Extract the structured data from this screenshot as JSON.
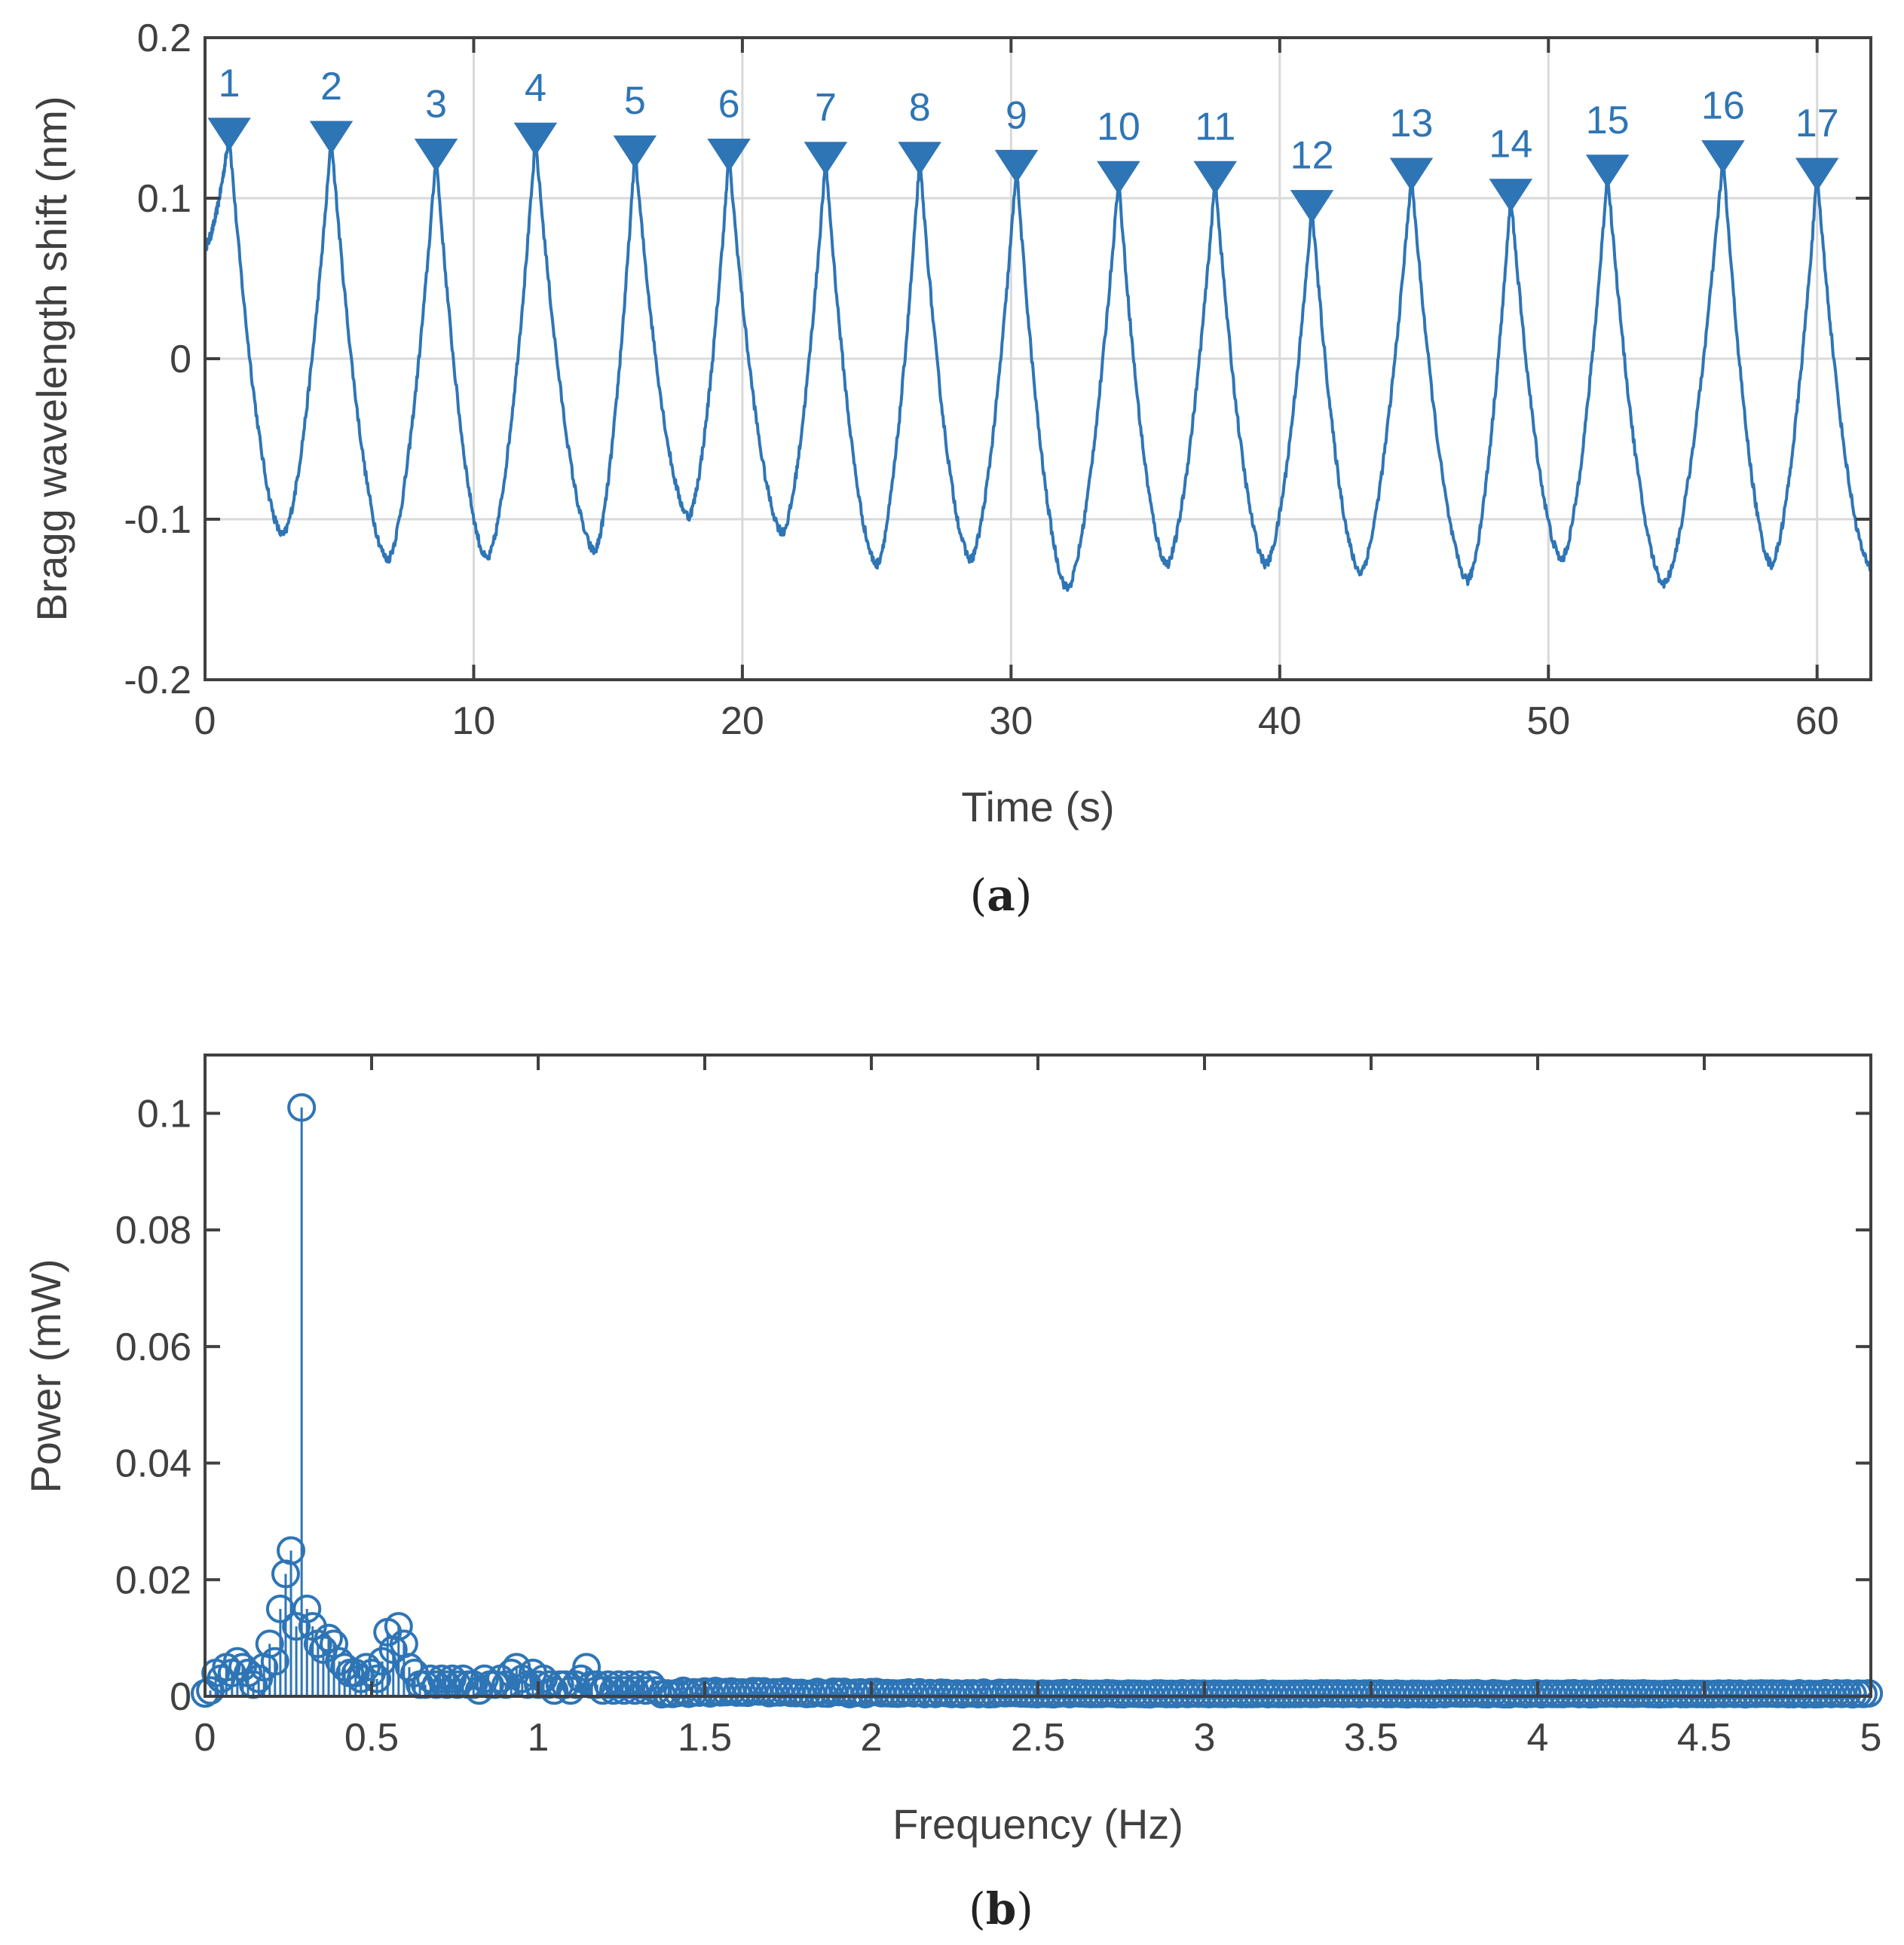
{
  "colors": {
    "series": "#2e75b6",
    "axis": "#404040",
    "grid": "#d9d9d9"
  },
  "chart_data": [
    {
      "id": "a",
      "type": "line",
      "caption_open": "(",
      "caption_letter": "a",
      "caption_close": ")",
      "xlabel": "Time (s)",
      "ylabel": "Bragg wavelength shift (nm)",
      "xlim": [
        0,
        62
      ],
      "ylim": [
        -0.2,
        0.2
      ],
      "xticks": [
        0,
        10,
        20,
        30,
        40,
        50,
        60
      ],
      "yticks": [
        -0.2,
        -0.1,
        0,
        0.1,
        0.2
      ],
      "xtick_labels": [
        "0",
        "10",
        "20",
        "30",
        "40",
        "50",
        "60"
      ],
      "ytick_labels": [
        "-0.2",
        "-0.1",
        "0",
        "0.1",
        "0.2"
      ],
      "grid": true,
      "series_start": [
        0,
        0.07
      ],
      "series_end": [
        62,
        -0.13
      ],
      "troughs": [
        [
          2.9,
          -0.11
        ],
        [
          6.8,
          -0.125
        ],
        [
          10.5,
          -0.125
        ],
        [
          14.5,
          -0.12
        ],
        [
          18.0,
          -0.098
        ],
        [
          21.5,
          -0.108
        ],
        [
          25.0,
          -0.128
        ],
        [
          28.5,
          -0.125
        ],
        [
          32.1,
          -0.143
        ],
        [
          35.8,
          -0.128
        ],
        [
          39.5,
          -0.128
        ],
        [
          43.0,
          -0.133
        ],
        [
          47.0,
          -0.138
        ],
        [
          50.5,
          -0.125
        ],
        [
          54.3,
          -0.14
        ],
        [
          58.3,
          -0.128
        ]
      ],
      "peaks": [
        {
          "label": "1",
          "t": 0.9,
          "v": 0.14
        },
        {
          "label": "2",
          "t": 4.7,
          "v": 0.138
        },
        {
          "label": "3",
          "t": 8.6,
          "v": 0.127
        },
        {
          "label": "4",
          "t": 12.3,
          "v": 0.137
        },
        {
          "label": "5",
          "t": 16.0,
          "v": 0.129
        },
        {
          "label": "6",
          "t": 19.5,
          "v": 0.127
        },
        {
          "label": "7",
          "t": 23.1,
          "v": 0.125
        },
        {
          "label": "8",
          "t": 26.6,
          "v": 0.125
        },
        {
          "label": "9",
          "t": 30.2,
          "v": 0.12
        },
        {
          "label": "10",
          "t": 34.0,
          "v": 0.113
        },
        {
          "label": "11",
          "t": 37.6,
          "v": 0.113
        },
        {
          "label": "12",
          "t": 41.2,
          "v": 0.095
        },
        {
          "label": "13",
          "t": 44.9,
          "v": 0.115
        },
        {
          "label": "14",
          "t": 48.6,
          "v": 0.102
        },
        {
          "label": "15",
          "t": 52.2,
          "v": 0.117
        },
        {
          "label": "16",
          "t": 56.5,
          "v": 0.126
        },
        {
          "label": "17",
          "t": 60.0,
          "v": 0.115
        }
      ]
    },
    {
      "id": "b",
      "type": "stem",
      "caption_open": "(",
      "caption_letter": "b",
      "caption_close": ")",
      "xlabel": "Frequency (Hz)",
      "ylabel": "Power (mW)",
      "xlim": [
        0,
        5
      ],
      "ylim": [
        0,
        0.11
      ],
      "xticks": [
        0,
        0.5,
        1,
        1.5,
        2,
        2.5,
        3,
        3.5,
        4,
        4.5,
        5
      ],
      "yticks": [
        0,
        0.02,
        0.04,
        0.06,
        0.08,
        0.1
      ],
      "xtick_labels": [
        "0",
        "0.5",
        "1",
        "1.5",
        "2",
        "2.5",
        "3",
        "3.5",
        "4",
        "4.5",
        "5"
      ],
      "ytick_labels": [
        "0",
        "0.02",
        "0.04",
        "0.06",
        "0.08",
        "0.1"
      ],
      "grid": false,
      "freq_step": 0.0161,
      "points": [
        [
          0.0,
          0.0005
        ],
        [
          0.016,
          0.001
        ],
        [
          0.032,
          0.004
        ],
        [
          0.048,
          0.003
        ],
        [
          0.064,
          0.005
        ],
        [
          0.081,
          0.004
        ],
        [
          0.097,
          0.006
        ],
        [
          0.113,
          0.005
        ],
        [
          0.129,
          0.004
        ],
        [
          0.145,
          0.002
        ],
        [
          0.161,
          0.003
        ],
        [
          0.177,
          0.005
        ],
        [
          0.194,
          0.009
        ],
        [
          0.21,
          0.006
        ],
        [
          0.226,
          0.015
        ],
        [
          0.242,
          0.021
        ],
        [
          0.258,
          0.025
        ],
        [
          0.274,
          0.012
        ],
        [
          0.29,
          0.101
        ],
        [
          0.306,
          0.015
        ],
        [
          0.323,
          0.012
        ],
        [
          0.339,
          0.009
        ],
        [
          0.355,
          0.008
        ],
        [
          0.371,
          0.01
        ],
        [
          0.387,
          0.009
        ],
        [
          0.403,
          0.006
        ],
        [
          0.419,
          0.005
        ],
        [
          0.435,
          0.004
        ],
        [
          0.452,
          0.004
        ],
        [
          0.468,
          0.003
        ],
        [
          0.484,
          0.005
        ],
        [
          0.5,
          0.004
        ],
        [
          0.516,
          0.003
        ],
        [
          0.532,
          0.006
        ],
        [
          0.548,
          0.011
        ],
        [
          0.565,
          0.008
        ],
        [
          0.581,
          0.012
        ],
        [
          0.597,
          0.009
        ],
        [
          0.613,
          0.005
        ],
        [
          0.629,
          0.004
        ],
        [
          0.645,
          0.002
        ],
        [
          0.661,
          0.002
        ],
        [
          0.677,
          0.003
        ],
        [
          0.694,
          0.002
        ],
        [
          0.71,
          0.003
        ],
        [
          0.726,
          0.002
        ],
        [
          0.742,
          0.003
        ],
        [
          0.758,
          0.002
        ],
        [
          0.774,
          0.003
        ],
        [
          0.79,
          0.002
        ],
        [
          0.806,
          0.002
        ],
        [
          0.823,
          0.001
        ],
        [
          0.839,
          0.003
        ],
        [
          0.855,
          0.002
        ],
        [
          0.871,
          0.002
        ],
        [
          0.887,
          0.003
        ],
        [
          0.903,
          0.002
        ],
        [
          0.919,
          0.004
        ],
        [
          0.935,
          0.005
        ],
        [
          0.952,
          0.003
        ],
        [
          0.968,
          0.002
        ],
        [
          0.984,
          0.004
        ],
        [
          1.0,
          0.002
        ],
        [
          1.016,
          0.003
        ],
        [
          1.032,
          0.002
        ],
        [
          1.048,
          0.001
        ],
        [
          1.065,
          0.002
        ],
        [
          1.081,
          0.002
        ],
        [
          1.097,
          0.001
        ],
        [
          1.113,
          0.002
        ],
        [
          1.129,
          0.003
        ],
        [
          1.145,
          0.005
        ],
        [
          1.161,
          0.002
        ],
        [
          1.177,
          0.002
        ],
        [
          1.194,
          0.001
        ],
        [
          1.21,
          0.002
        ],
        [
          1.226,
          0.001
        ],
        [
          1.242,
          0.002
        ],
        [
          1.258,
          0.001
        ],
        [
          1.274,
          0.002
        ],
        [
          1.29,
          0.001
        ],
        [
          1.306,
          0.002
        ],
        [
          1.323,
          0.001
        ],
        [
          1.339,
          0.002
        ],
        [
          1.355,
          0.001
        ]
      ],
      "tail_from": 1.371,
      "tail_level": 0.0012
    }
  ]
}
